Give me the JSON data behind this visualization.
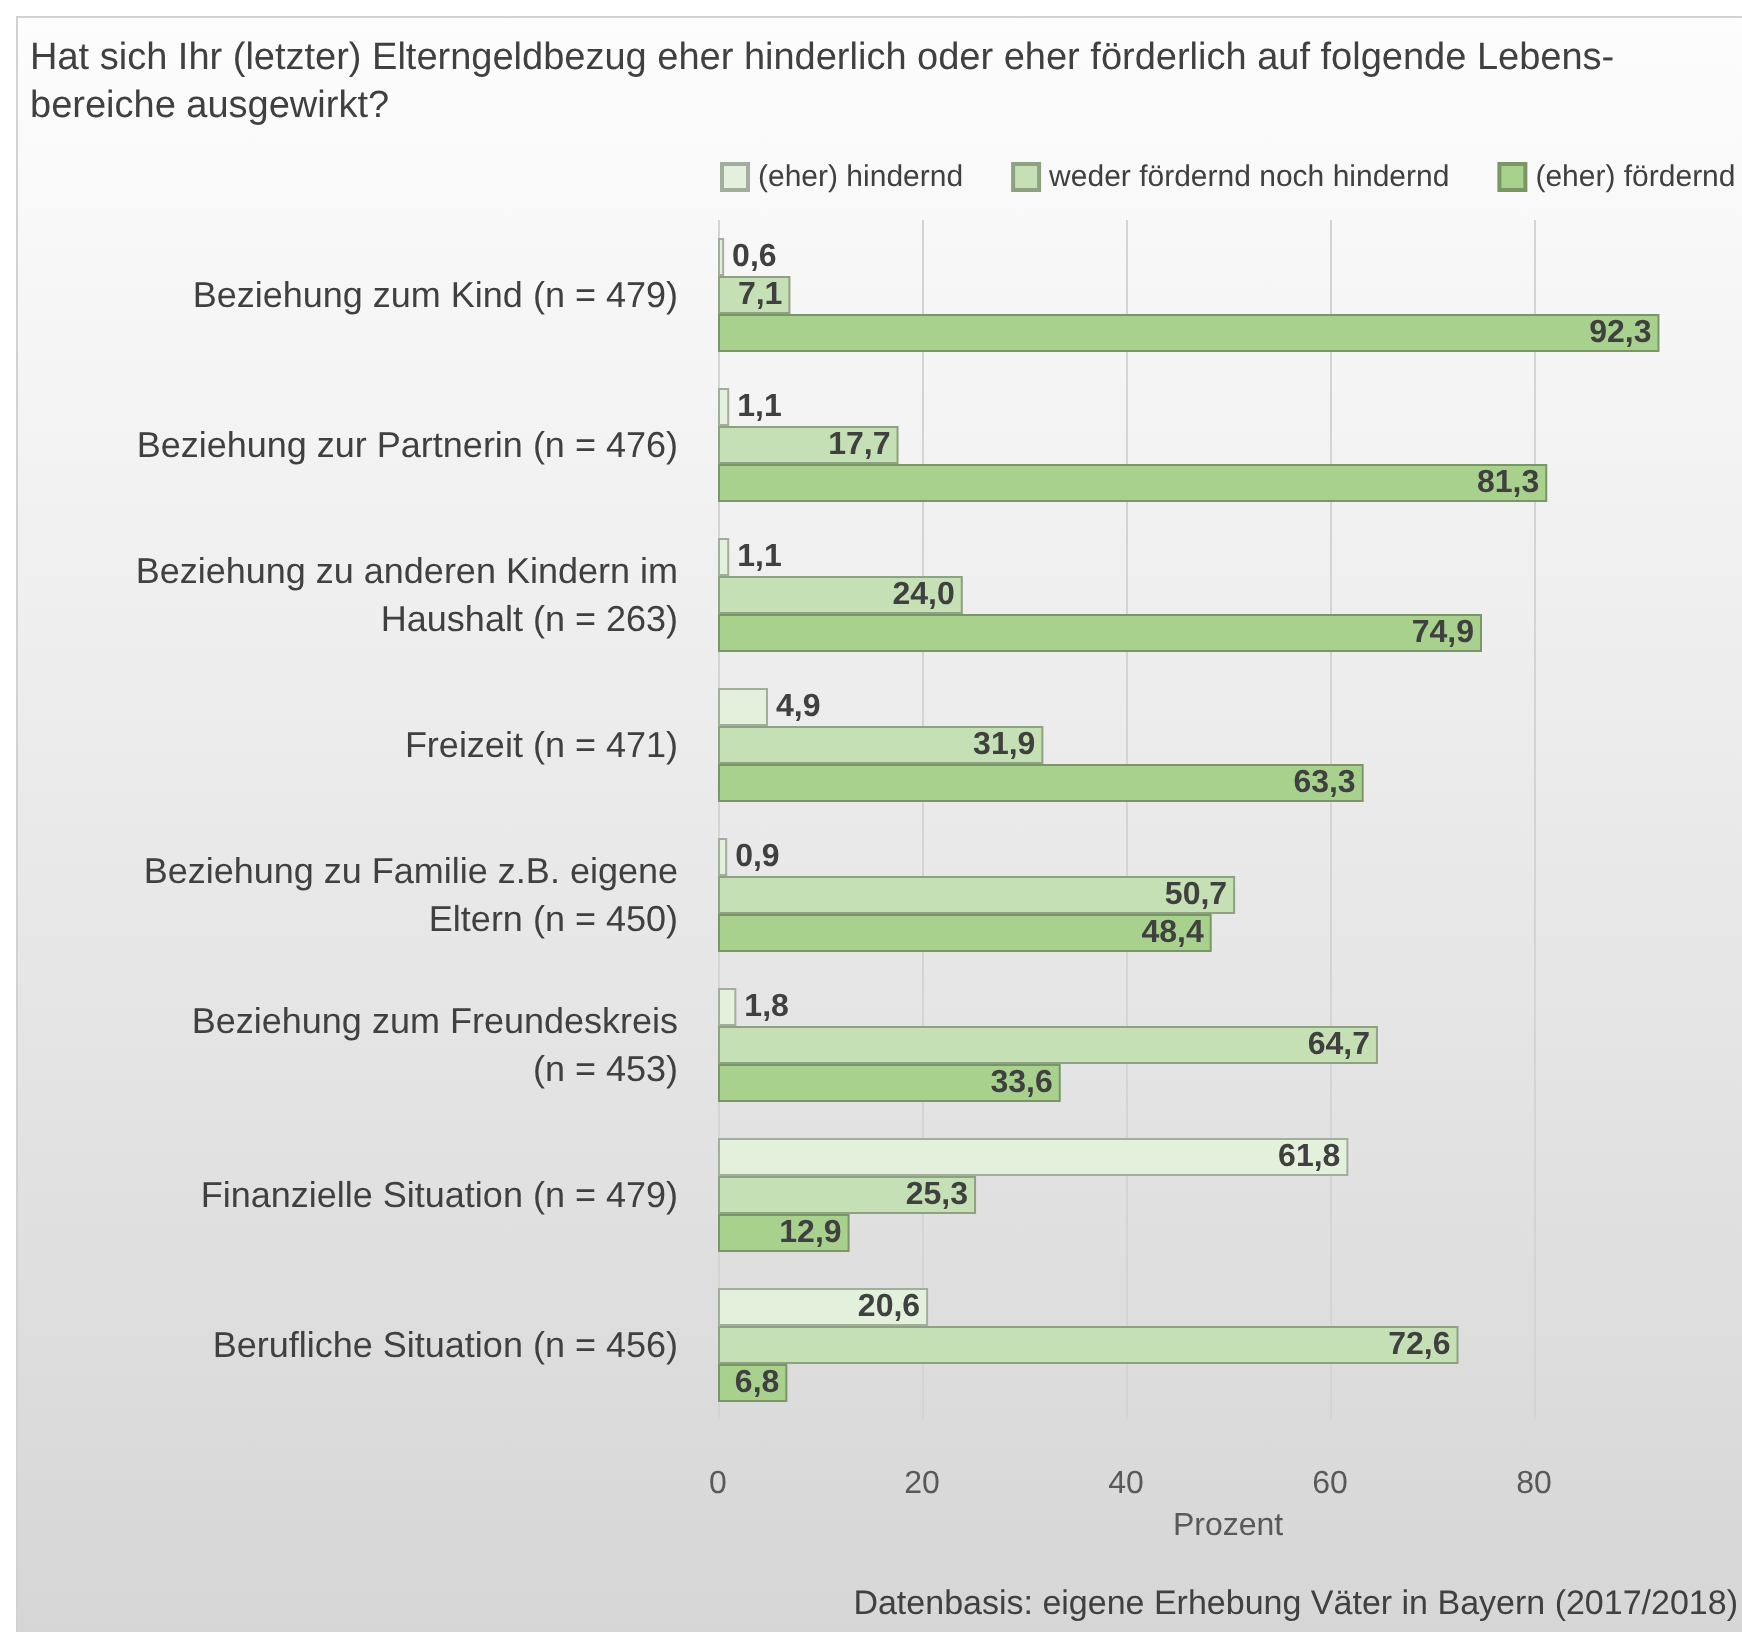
{
  "chart_data": {
    "type": "bar",
    "orientation": "horizontal",
    "title": "Hat sich Ihr (letzter) Elterngeldbezug eher hinderlich oder eher förderlich auf folgende Lebens-\nbereiche ausgewirkt?",
    "xlabel": "Prozent",
    "categories": [
      "Beziehung zum Kind (n = 479)",
      "Beziehung zur Partnerin (n = 476)",
      "Beziehung zu anderen Kindern im\nHaushalt (n = 263)",
      "Freizeit (n = 471)",
      "Beziehung zu Familie z.B. eigene\nEltern (n = 450)",
      "Beziehung zum Freundeskreis\n(n = 453)",
      "Finanzielle Situation (n = 479)",
      "Berufliche Situation (n = 456)"
    ],
    "series": [
      {
        "name": "(eher) hindernd",
        "color": "#e3f0db",
        "values": [
          0.6,
          1.1,
          1.1,
          4.9,
          0.9,
          1.8,
          61.8,
          20.6
        ],
        "value_labels": [
          "0,6",
          "1,1",
          "1,1",
          "4,9",
          "0,9",
          "1,8",
          "61,8",
          "20,6"
        ]
      },
      {
        "name": "weder fördernd noch hindernd",
        "color": "#c5e0b4",
        "values": [
          7.1,
          17.7,
          24.0,
          31.9,
          50.7,
          64.7,
          25.3,
          72.6
        ],
        "value_labels": [
          "7,1",
          "17,7",
          "24,0",
          "31,9",
          "50,7",
          "64,7",
          "25,3",
          "72,6"
        ]
      },
      {
        "name": "(eher) fördernd",
        "color": "#a9d18e",
        "values": [
          92.3,
          81.3,
          74.9,
          63.3,
          48.4,
          33.6,
          12.9,
          6.8
        ],
        "value_labels": [
          "92,3",
          "81,3",
          "74,9",
          "63,3",
          "48,4",
          "33,6",
          "12,9",
          "6,8"
        ]
      }
    ],
    "xlim": [
      0,
      100
    ],
    "xticks": [
      0,
      20,
      40,
      60,
      80
    ],
    "grid": "x",
    "legend": "top",
    "annotations": [
      "Datenbasis: eigene Erhebung Väter in Bayern (2017/2018)"
    ]
  }
}
